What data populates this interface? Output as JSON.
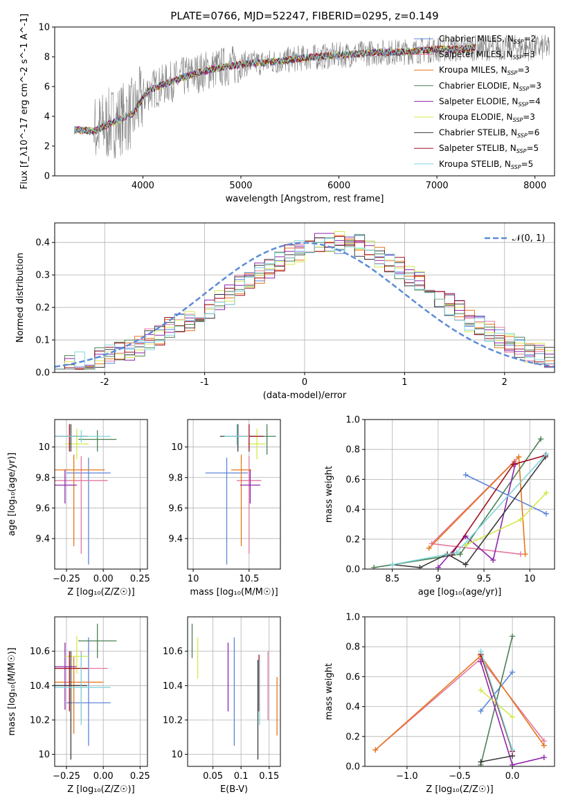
{
  "figure_title": "PLATE=0766, MJD=52247, FIBERID=0295, z=0.149",
  "colors": {
    "chabrier_miles": "#5b84d8",
    "salpeter_miles": "#e377a0",
    "kroupa_miles": "#e6751a",
    "chabrier_elodie": "#4a7f52",
    "salpeter_elodie": "#8e24aa",
    "kroupa_elodie": "#d4e84a",
    "chabrier_stelib": "#3a3a3a",
    "salpeter_stelib": "#9e0f1e",
    "kroupa_stelib": "#7fd6dc",
    "data": "#808080",
    "gaussian": "#5b8bd8"
  },
  "chart_data": [
    {
      "type": "line",
      "title": "PLATE=0766, MJD=52247, FIBERID=0295, z=0.149",
      "xlabel": "wavelength [Angstrom, rest frame]",
      "ylabel": "Flux [f_λ10^-17 erg cm^-2 s^-1 A^-1]",
      "xlim": [
        3100,
        8200
      ],
      "ylim": [
        0,
        10
      ],
      "xticks": [
        4000,
        5000,
        6000,
        7000,
        8000
      ],
      "yticks": [
        0,
        2,
        4,
        6,
        8,
        10
      ],
      "legend_position": "top-right",
      "legend": [
        {
          "main": "Chabrier MILES, N",
          "sub": "SSP",
          "tail": "=2",
          "color": "chabrier_miles"
        },
        {
          "main": "Salpeter MILES, N",
          "sub": "SSP",
          "tail": "=3",
          "color": "salpeter_miles"
        },
        {
          "main": "Kroupa MILES, N",
          "sub": "SSP",
          "tail": "=3",
          "color": "kroupa_miles"
        },
        {
          "main": "Chabrier ELODIE, N",
          "sub": "SSP",
          "tail": "=3",
          "color": "chabrier_elodie"
        },
        {
          "main": "Salpeter ELODIE, N",
          "sub": "SSP",
          "tail": "=4",
          "color": "salpeter_elodie"
        },
        {
          "main": "Kroupa ELODIE, N",
          "sub": "SSP",
          "tail": "=3",
          "color": "kroupa_elodie"
        },
        {
          "main": "Chabrier STELIB, N",
          "sub": "SSP",
          "tail": "=6",
          "color": "chabrier_stelib"
        },
        {
          "main": "Salpeter STELIB, N",
          "sub": "SSP",
          "tail": "=5",
          "color": "salpeter_stelib"
        },
        {
          "main": "Kroupa STELIB, N",
          "sub": "SSP",
          "tail": "=5",
          "color": "kroupa_stelib"
        }
      ],
      "spectrum_model": {
        "x": [
          3300,
          3500,
          3700,
          3900,
          4050,
          4200,
          4400,
          4600,
          4800,
          5000,
          5200,
          5400,
          5600,
          5800,
          6000,
          6200,
          6400,
          6600,
          6800,
          7000,
          7200,
          7400
        ],
        "y": [
          3.1,
          3.0,
          3.6,
          4.2,
          5.7,
          6.1,
          6.6,
          7.0,
          7.3,
          7.5,
          7.6,
          7.7,
          7.9,
          8.0,
          8.1,
          8.2,
          8.3,
          8.3,
          8.4,
          8.5,
          8.5,
          8.6
        ]
      }
    },
    {
      "type": "bar",
      "xlabel": "(data-model)/error",
      "ylabel": "Normed distribution",
      "xlim": [
        -2.5,
        2.5
      ],
      "ylim": [
        0,
        0.46
      ],
      "xticks": [
        -2,
        -1,
        0,
        1,
        2
      ],
      "yticks": [
        0.0,
        0.1,
        0.2,
        0.3,
        0.4
      ],
      "grid": true,
      "legend_position": "top-right",
      "gaussian_label": "𝒩(0, 1)",
      "bin_width": 0.1,
      "bins_start": -2.5,
      "histogram_envelope": [
        0.025,
        0.025,
        0.03,
        0.035,
        0.045,
        0.055,
        0.06,
        0.07,
        0.085,
        0.1,
        0.115,
        0.135,
        0.15,
        0.16,
        0.175,
        0.195,
        0.22,
        0.24,
        0.27,
        0.29,
        0.305,
        0.325,
        0.345,
        0.36,
        0.375,
        0.39,
        0.4,
        0.405,
        0.4,
        0.395,
        0.39,
        0.37,
        0.355,
        0.34,
        0.32,
        0.3,
        0.28,
        0.26,
        0.23,
        0.21,
        0.19,
        0.16,
        0.14,
        0.125,
        0.11,
        0.095,
        0.08,
        0.065,
        0.055,
        0.045
      ],
      "gaussian": {
        "mean": 0,
        "sigma": 1
      }
    },
    {
      "type": "scatter",
      "name": "age-vs-metallicity",
      "xlabel": "Z [log₁₀(Z/Z☉)]",
      "ylabel": "age  [log₁₀(age/yr)]",
      "xlim": [
        -0.33,
        0.3
      ],
      "ylim": [
        9.2,
        10.18
      ],
      "xticks": [
        -0.25,
        0.0,
        0.25
      ],
      "xticklabels": [
        "−0.25",
        "0.00",
        "0.25"
      ],
      "yticks": [
        9.4,
        9.6,
        9.8,
        10.0
      ],
      "grid": true,
      "points": [
        {
          "x": -0.1,
          "y": 9.83,
          "xerr": 0.3,
          "yerr": [
            0.6,
            0.1
          ],
          "color": "chabrier_miles"
        },
        {
          "x": -0.15,
          "y": 9.78,
          "xerr": 0.36,
          "yerr": [
            0.48,
            0.16
          ],
          "color": "salpeter_miles"
        },
        {
          "x": -0.2,
          "y": 9.85,
          "xerr": 0.42,
          "yerr": [
            0.5,
            0.1
          ],
          "color": "kroupa_miles"
        },
        {
          "x": -0.04,
          "y": 10.05,
          "xerr": 0.26,
          "yerr": [
            0.08,
            0.06
          ],
          "color": "chabrier_elodie"
        },
        {
          "x": -0.26,
          "y": 9.75,
          "xerr": 0.16,
          "yerr": [
            0.12,
            0.1
          ],
          "color": "salpeter_elodie"
        },
        {
          "x": -0.18,
          "y": 10.02,
          "xerr": 0.16,
          "yerr": [
            0.1,
            0.1
          ],
          "color": "kroupa_elodie"
        },
        {
          "x": -0.22,
          "y": 10.07,
          "xerr": 0.22,
          "yerr": [
            0.1,
            0.08
          ],
          "color": "chabrier_stelib"
        },
        {
          "x": -0.23,
          "y": 10.07,
          "xerr": 0.25,
          "yerr": [
            0.1,
            0.08
          ],
          "color": "salpeter_stelib"
        },
        {
          "x": -0.15,
          "y": 10.07,
          "xerr": 0.4,
          "yerr": [
            0.04,
            0.04
          ],
          "color": "kroupa_stelib"
        }
      ]
    },
    {
      "type": "scatter",
      "name": "age-vs-mass",
      "xlabel": "mass [log₁₀(M/M☉)]",
      "ylabel": "",
      "xlim": [
        9.95,
        10.78
      ],
      "ylim": [
        9.2,
        10.18
      ],
      "xticks": [
        10.0,
        10.5
      ],
      "yticks": [
        9.4,
        9.6,
        9.8,
        10.0
      ],
      "grid": true,
      "points": [
        {
          "x": 10.3,
          "y": 9.83,
          "xerr": 0.38,
          "yerr": [
            0.6,
            0.1
          ],
          "color": "chabrier_miles"
        },
        {
          "x": 10.5,
          "y": 9.78,
          "xerr": 0.22,
          "yerr": [
            0.48,
            0.16
          ],
          "color": "salpeter_miles"
        },
        {
          "x": 10.43,
          "y": 9.85,
          "xerr": 0.18,
          "yerr": [
            0.5,
            0.1
          ],
          "color": "kroupa_miles"
        },
        {
          "x": 10.66,
          "y": 10.07,
          "xerr": 0.16,
          "yerr": [
            0.12,
            0.08
          ],
          "color": "chabrier_elodie"
        },
        {
          "x": 10.51,
          "y": 9.75,
          "xerr": 0.18,
          "yerr": [
            0.12,
            0.1
          ],
          "color": "salpeter_elodie"
        },
        {
          "x": 10.57,
          "y": 10.02,
          "xerr": 0.16,
          "yerr": [
            0.1,
            0.1
          ],
          "color": "kroupa_elodie"
        },
        {
          "x": 10.4,
          "y": 10.07,
          "xerr": 0.32,
          "yerr": [
            0.1,
            0.08
          ],
          "color": "chabrier_stelib"
        },
        {
          "x": 10.5,
          "y": 10.07,
          "xerr": 0.26,
          "yerr": [
            0.1,
            0.08
          ],
          "color": "salpeter_stelib"
        },
        {
          "x": 10.39,
          "y": 10.07,
          "xerr": 0.22,
          "yerr": [
            0.06,
            0.08
          ],
          "color": "kroupa_stelib"
        }
      ]
    },
    {
      "type": "line",
      "name": "mass-weight-vs-age",
      "xlabel": "age  [log₁₀(age/yr)]",
      "ylabel": "mass weight",
      "xlim": [
        8.2,
        10.27
      ],
      "ylim": [
        0,
        1
      ],
      "xticks": [
        8.5,
        9.0,
        9.5,
        10.0
      ],
      "yticks": [
        0.0,
        0.2,
        0.4,
        0.6,
        0.8,
        1.0
      ],
      "grid": true,
      "series": [
        {
          "color": "chabrier_miles",
          "x": [
            9.3,
            10.18
          ],
          "y": [
            0.63,
            0.37
          ]
        },
        {
          "color": "salpeter_miles",
          "x": [
            9.83,
            8.93,
            9.9
          ],
          "y": [
            0.72,
            0.17,
            0.1
          ]
        },
        {
          "color": "kroupa_miles",
          "x": [
            8.9,
            9.88,
            9.95
          ],
          "y": [
            0.14,
            0.75,
            0.1
          ]
        },
        {
          "color": "chabrier_elodie",
          "x": [
            8.3,
            9.24,
            10.12
          ],
          "y": [
            0.01,
            0.1,
            0.87
          ]
        },
        {
          "color": "salpeter_elodie",
          "x": [
            9.0,
            9.3,
            9.6,
            9.84
          ],
          "y": [
            0.01,
            0.22,
            0.06,
            0.7
          ]
        },
        {
          "color": "kroupa_elodie",
          "x": [
            9.3,
            9.9,
            10.18
          ],
          "y": [
            0.16,
            0.33,
            0.51
          ]
        },
        {
          "color": "chabrier_stelib",
          "x": [
            8.5,
            8.8,
            9.1,
            9.3,
            10.17
          ],
          "y": [
            0.03,
            0.01,
            0.1,
            0.03,
            0.75
          ]
        },
        {
          "color": "salpeter_stelib",
          "x": [
            9.15,
            9.82,
            10.17
          ],
          "y": [
            0.1,
            0.7,
            0.76
          ]
        },
        {
          "color": "kroupa_stelib",
          "x": [
            8.5,
            9.2,
            10.18
          ],
          "y": [
            0.03,
            0.11,
            0.77
          ]
        }
      ]
    },
    {
      "type": "scatter",
      "name": "mass-vs-metallicity",
      "xlabel": "Z [log₁₀(Z/Z☉)]",
      "ylabel": "mass [log₁₀(M/M☉)]",
      "xlim": [
        -0.33,
        0.3
      ],
      "ylim": [
        9.93,
        10.8
      ],
      "xticks": [
        -0.25,
        0.0,
        0.25
      ],
      "xticklabels": [
        "−0.25",
        "0.00",
        "0.25"
      ],
      "yticks": [
        10.0,
        10.2,
        10.4,
        10.6
      ],
      "grid": true,
      "points": [
        {
          "x": -0.1,
          "y": 10.3,
          "xerr": 0.3,
          "yerr": [
            0.25,
            0.38
          ],
          "color": "chabrier_miles"
        },
        {
          "x": -0.15,
          "y": 10.5,
          "xerr": 0.36,
          "yerr": [
            0.3,
            0.1
          ],
          "color": "salpeter_miles"
        },
        {
          "x": -0.2,
          "y": 10.42,
          "xerr": 0.4,
          "yerr": [
            0.3,
            0.15
          ],
          "color": "kroupa_miles"
        },
        {
          "x": -0.04,
          "y": 10.66,
          "xerr": 0.26,
          "yerr": [
            0.1,
            0.1
          ],
          "color": "chabrier_elodie"
        },
        {
          "x": -0.26,
          "y": 10.51,
          "xerr": 0.16,
          "yerr": [
            0.25,
            0.14
          ],
          "color": "salpeter_elodie"
        },
        {
          "x": -0.18,
          "y": 10.57,
          "xerr": 0.16,
          "yerr": [
            0.1,
            0.12
          ],
          "color": "kroupa_elodie"
        },
        {
          "x": -0.22,
          "y": 10.4,
          "xerr": 0.22,
          "yerr": [
            0.43,
            0.2
          ],
          "color": "chabrier_stelib"
        },
        {
          "x": -0.23,
          "y": 10.5,
          "xerr": 0.25,
          "yerr": [
            0.25,
            0.1
          ],
          "color": "salpeter_stelib"
        },
        {
          "x": -0.15,
          "y": 10.39,
          "xerr": 0.4,
          "yerr": [
            0.22,
            0.2
          ],
          "color": "kroupa_stelib"
        }
      ]
    },
    {
      "type": "scatter",
      "name": "mass-vs-ebv",
      "xlabel": "E(B-V)",
      "ylabel": "",
      "xlim": [
        0.005,
        0.17
      ],
      "ylim": [
        9.93,
        10.8
      ],
      "xticks": [
        0.05,
        0.1,
        0.15
      ],
      "yticks": [
        10.0,
        10.2,
        10.4,
        10.6
      ],
      "grid": true,
      "points": [
        {
          "x": 0.088,
          "y": 10.3,
          "yerr": [
            0.25,
            0.38
          ],
          "color": "chabrier_miles"
        },
        {
          "x": 0.148,
          "y": 10.5,
          "yerr": [
            0.3,
            0.1
          ],
          "color": "salpeter_miles"
        },
        {
          "x": 0.164,
          "y": 10.28,
          "yerr": [
            0.17,
            0.17
          ],
          "color": "kroupa_miles"
        },
        {
          "x": 0.013,
          "y": 10.66,
          "yerr": [
            0.1,
            0.1
          ],
          "color": "chabrier_elodie"
        },
        {
          "x": 0.077,
          "y": 10.45,
          "yerr": [
            0.2,
            0.2
          ],
          "color": "salpeter_elodie"
        },
        {
          "x": 0.023,
          "y": 10.56,
          "yerr": [
            0.12,
            0.12
          ],
          "color": "kroupa_elodie"
        },
        {
          "x": 0.13,
          "y": 10.4,
          "yerr": [
            0.43,
            0.15
          ],
          "color": "chabrier_stelib"
        },
        {
          "x": 0.132,
          "y": 10.5,
          "yerr": [
            0.25,
            0.08
          ],
          "color": "salpeter_stelib"
        },
        {
          "x": 0.133,
          "y": 10.39,
          "yerr": [
            0.22,
            0.16
          ],
          "color": "kroupa_stelib"
        }
      ]
    },
    {
      "type": "line",
      "name": "mass-weight-vs-metallicity",
      "xlabel": "Z [log₁₀(Z/Z☉)]",
      "ylabel": "mass weight",
      "xlim": [
        -1.4,
        0.4
      ],
      "ylim": [
        0,
        1
      ],
      "xticks": [
        -1.0,
        -0.5,
        0.0
      ],
      "xticklabels": [
        "−1.0",
        "−0.5",
        "0.0"
      ],
      "yticks": [
        0.0,
        0.2,
        0.4,
        0.6,
        0.8,
        1.0
      ],
      "grid": true,
      "series": [
        {
          "color": "chabrier_miles",
          "x": [
            -0.3,
            0.0
          ],
          "y": [
            0.37,
            0.63
          ]
        },
        {
          "color": "salpeter_miles",
          "x": [
            -1.3,
            -0.3,
            0.3
          ],
          "y": [
            0.11,
            0.72,
            0.17
          ]
        },
        {
          "color": "kroupa_miles",
          "x": [
            -1.3,
            -0.3,
            0.3
          ],
          "y": [
            0.11,
            0.74,
            0.14
          ]
        },
        {
          "color": "chabrier_elodie",
          "x": [
            -0.3,
            0.0
          ],
          "y": [
            0.01,
            0.87
          ]
        },
        {
          "color": "salpeter_elodie",
          "x": [
            -0.3,
            0.0,
            0.3
          ],
          "y": [
            0.7,
            0.01,
            0.06
          ]
        },
        {
          "color": "kroupa_elodie",
          "x": [
            -0.3,
            0.0
          ],
          "y": [
            0.51,
            0.33
          ]
        },
        {
          "color": "chabrier_stelib",
          "x": [
            -0.3,
            0.0
          ],
          "y": [
            0.03,
            0.07
          ]
        },
        {
          "color": "salpeter_stelib",
          "x": [
            -0.3,
            0.0
          ],
          "y": [
            0.75,
            0.1
          ]
        },
        {
          "color": "kroupa_stelib",
          "x": [
            -0.3,
            0.0
          ],
          "y": [
            0.77,
            0.11
          ]
        }
      ]
    }
  ]
}
